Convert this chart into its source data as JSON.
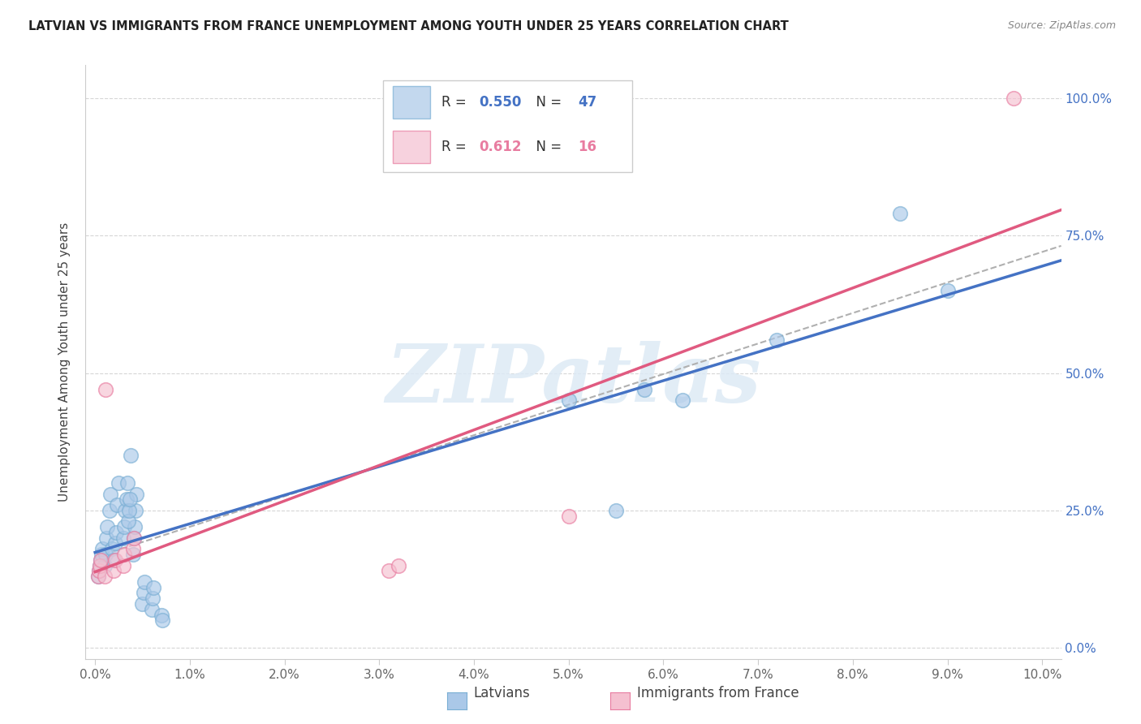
{
  "title": "LATVIAN VS IMMIGRANTS FROM FRANCE UNEMPLOYMENT AMONG YOUTH UNDER 25 YEARS CORRELATION CHART",
  "source": "Source: ZipAtlas.com",
  "ylabel": "Unemployment Among Youth under 25 years",
  "xlim": [
    -0.001,
    0.102
  ],
  "ylim": [
    -0.02,
    1.06
  ],
  "xticks": [
    0.0,
    0.01,
    0.02,
    0.03,
    0.04,
    0.05,
    0.06,
    0.07,
    0.08,
    0.09,
    0.1
  ],
  "xticklabels": [
    "0.0%",
    "1.0%",
    "2.0%",
    "3.0%",
    "4.0%",
    "5.0%",
    "6.0%",
    "7.0%",
    "8.0%",
    "9.0%",
    "10.0%"
  ],
  "yticks": [
    0.0,
    0.25,
    0.5,
    0.75,
    1.0
  ],
  "yticklabels": [
    "0.0%",
    "25.0%",
    "50.0%",
    "75.0%",
    "100.0%"
  ],
  "latvian_color": "#aac8e8",
  "latvian_edge_color": "#7aafd4",
  "france_color": "#f5c0d0",
  "france_edge_color": "#e87ca0",
  "latvian_line_color": "#4472c4",
  "france_line_color": "#e05a80",
  "dash_line_color": "#b0b0b0",
  "watermark": "ZIPatlas",
  "background_color": "#ffffff",
  "grid_color": "#cccccc",
  "latvian_R": 0.55,
  "latvian_N": 47,
  "france_R": 0.612,
  "france_N": 16,
  "latvians_x": [
    0.0003,
    0.0004,
    0.0005,
    0.0006,
    0.0007,
    0.0008,
    0.001,
    0.0011,
    0.0012,
    0.0013,
    0.0015,
    0.0016,
    0.0018,
    0.002,
    0.0021,
    0.0022,
    0.0023,
    0.0025,
    0.003,
    0.0031,
    0.0032,
    0.0033,
    0.0034,
    0.004,
    0.0041,
    0.0042,
    0.0043,
    0.0044,
    0.005,
    0.0051,
    0.0052,
    0.006,
    0.0061,
    0.0062,
    0.007,
    0.0071,
    0.0035,
    0.0036,
    0.0037,
    0.0038,
    0.05,
    0.055,
    0.058,
    0.062,
    0.072,
    0.085,
    0.09
  ],
  "latvians_y": [
    0.13,
    0.14,
    0.15,
    0.16,
    0.17,
    0.18,
    0.15,
    0.17,
    0.2,
    0.22,
    0.25,
    0.28,
    0.18,
    0.16,
    0.19,
    0.21,
    0.26,
    0.3,
    0.2,
    0.22,
    0.25,
    0.27,
    0.3,
    0.17,
    0.2,
    0.22,
    0.25,
    0.28,
    0.08,
    0.1,
    0.12,
    0.07,
    0.09,
    0.11,
    0.06,
    0.05,
    0.23,
    0.25,
    0.27,
    0.35,
    0.45,
    0.25,
    0.47,
    0.45,
    0.56,
    0.79,
    0.65
  ],
  "france_x": [
    0.0003,
    0.0004,
    0.0005,
    0.0006,
    0.001,
    0.0011,
    0.002,
    0.0021,
    0.003,
    0.0031,
    0.004,
    0.0041,
    0.031,
    0.032,
    0.05,
    0.097
  ],
  "france_y": [
    0.13,
    0.14,
    0.15,
    0.16,
    0.13,
    0.47,
    0.14,
    0.16,
    0.15,
    0.17,
    0.18,
    0.2,
    0.14,
    0.15,
    0.24,
    1.0
  ]
}
